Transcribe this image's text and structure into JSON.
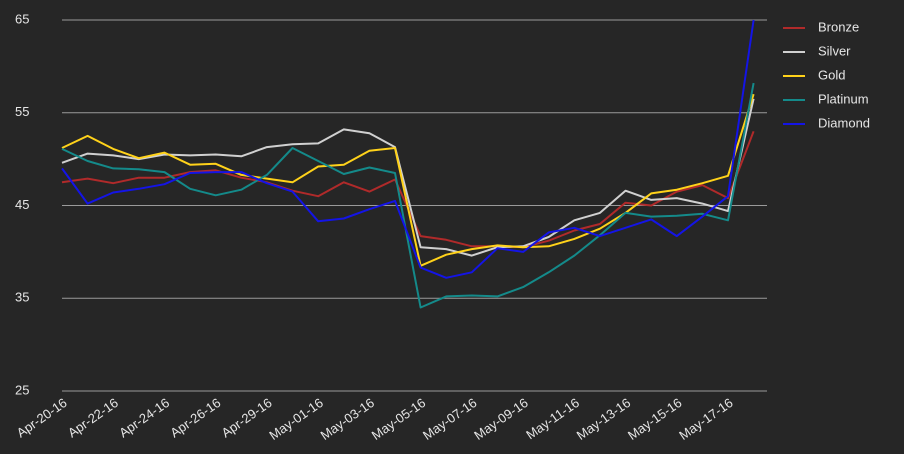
{
  "chart_data": {
    "type": "line",
    "categories": [
      "Apr-20-16",
      null,
      "Apr-22-16",
      null,
      "Apr-24-16",
      null,
      "Apr-26-16",
      null,
      "Apr-29-16",
      null,
      "May-01-16",
      null,
      "May-03-16",
      null,
      "May-05-16",
      null,
      "May-07-16",
      null,
      "May-09-16",
      null,
      "May-11-16",
      null,
      "May-13-16",
      null,
      "May-15-16",
      null,
      "May-17-16",
      null
    ],
    "series": [
      {
        "name": "Bronze",
        "color": "#b02a2a",
        "values": [
          47.5,
          47.9,
          47.4,
          48.0,
          48.0,
          48.6,
          48.8,
          48.0,
          47.5,
          46.6,
          46.0,
          47.5,
          46.5,
          47.8,
          41.7,
          41.3,
          40.6,
          40.6,
          40.5,
          41.2,
          42.3,
          43.0,
          45.3,
          45.0,
          46.5,
          47.2,
          45.8,
          53.0
        ]
      },
      {
        "name": "Silver",
        "color": "#d0d0d0",
        "values": [
          49.6,
          50.6,
          50.4,
          50.0,
          50.5,
          50.4,
          50.5,
          50.3,
          51.3,
          51.6,
          51.7,
          53.2,
          52.8,
          51.3,
          40.5,
          40.3,
          39.6,
          40.5,
          40.6,
          41.6,
          43.4,
          44.2,
          46.6,
          45.6,
          45.8,
          45.2,
          44.4,
          56.5
        ]
      },
      {
        "name": "Gold",
        "color": "#ffd21a",
        "values": [
          51.2,
          52.5,
          51.1,
          50.1,
          50.7,
          49.4,
          49.5,
          48.3,
          47.9,
          47.5,
          49.2,
          49.4,
          50.9,
          51.2,
          38.5,
          39.7,
          40.3,
          40.7,
          40.5,
          40.6,
          41.4,
          42.5,
          44.2,
          46.3,
          46.7,
          47.4,
          48.2,
          57.0
        ]
      },
      {
        "name": "Platinum",
        "color": "#148a8a",
        "values": [
          51.1,
          49.8,
          49.0,
          48.9,
          48.6,
          46.8,
          46.1,
          46.7,
          48.3,
          51.2,
          49.8,
          48.4,
          49.1,
          48.5,
          34.0,
          35.2,
          35.3,
          35.2,
          36.2,
          37.8,
          39.6,
          41.8,
          44.2,
          43.8,
          43.9,
          44.1,
          43.4,
          58.2
        ]
      },
      {
        "name": "Diamond",
        "color": "#1414e6",
        "values": [
          49.0,
          45.2,
          46.4,
          46.8,
          47.3,
          48.5,
          48.6,
          48.6,
          47.4,
          46.5,
          43.3,
          43.6,
          44.6,
          45.5,
          38.3,
          37.2,
          37.8,
          40.4,
          40.0,
          42.1,
          42.6,
          41.7,
          42.6,
          43.5,
          41.7,
          43.8,
          46.0,
          65.0
        ]
      }
    ],
    "ylim": [
      25,
      65
    ],
    "yticks": [
      25,
      35,
      45,
      55,
      65
    ],
    "grid": true,
    "legend": "right"
  }
}
